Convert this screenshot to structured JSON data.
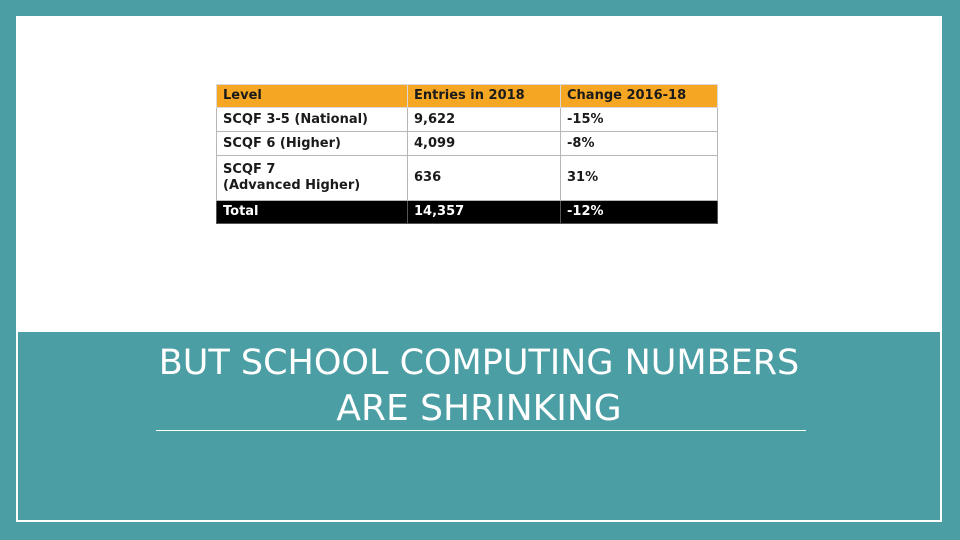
{
  "table": {
    "headers": [
      "Level",
      "Entries in 2018",
      "Change 2016-18"
    ],
    "rows": [
      {
        "level": "SCQF 3-5 (National)",
        "entries": "9,622",
        "change": "-15%"
      },
      {
        "level": "SCQF 6 (Higher)",
        "entries": "4,099",
        "change": "-8%"
      },
      {
        "level_line1": "SCQF 7",
        "level_line2": "(Advanced Higher)",
        "entries": "636",
        "change": "31%"
      }
    ],
    "total": {
      "level": "Total",
      "entries": "14,357",
      "change": "-12%"
    }
  },
  "title": {
    "line1": "BUT SCHOOL COMPUTING NUMBERS",
    "line2": "ARE SHRINKING"
  },
  "colors": {
    "teal": "#4b9ea3",
    "header_orange": "#f5a623",
    "total_black": "#000000"
  }
}
